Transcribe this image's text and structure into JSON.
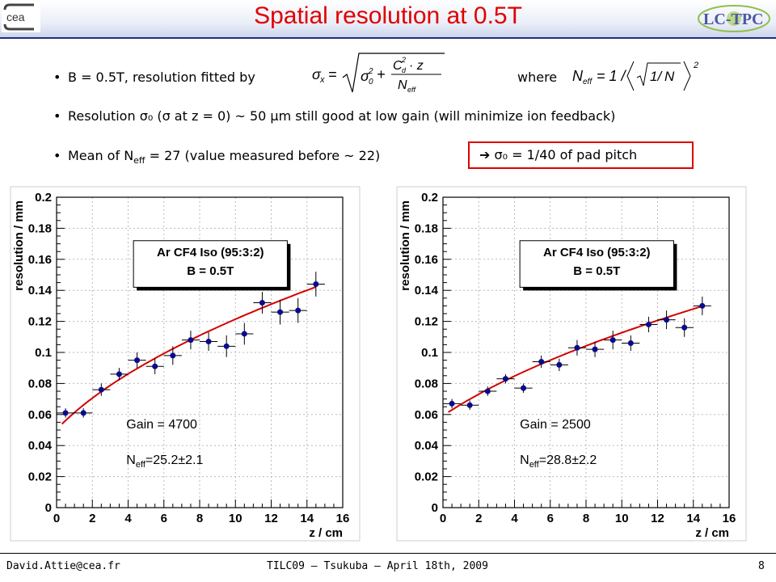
{
  "header": {
    "title": "Spatial resolution at 0.5T",
    "logo_left_text": "cea",
    "logo_right_text": "LC-TPC"
  },
  "bullets": {
    "b1_text": "B = 0.5T, resolution fitted by",
    "b1_where": "where",
    "b2_text": "Resolution σ₀ (σ at z = 0) ~ 50 μm still good at low gain (will minimize ion feedback)",
    "b3_pre": "Mean of N",
    "b3_sub": "eff",
    "b3_post": " = 27 (value measured before ~ 22)",
    "box_note": "➔ σ₀ = 1/40 of pad pitch"
  },
  "formulas": {
    "sigma_fit": "σₓ = √( σ₀² + C_d²·z / N_eff )",
    "neff_def": "N_eff = 1 / ⟨ √(1/N) ⟩²"
  },
  "footer": {
    "left": "David.Attie@cea.fr",
    "center": "TILC09 – Tsukuba – April 18th, 2009",
    "page": "8"
  },
  "colors": {
    "fit_line": "#d40000",
    "points": "#0a0a8c",
    "title": "#e00000",
    "frame_bg": "#ffffff"
  },
  "chart_data": [
    {
      "type": "scatter",
      "xlabel": "z / cm",
      "ylabel": "resolution / mm",
      "xlim": [
        0,
        16
      ],
      "ylim": [
        0,
        0.2
      ],
      "x_ticks": [
        "0",
        "2",
        "4",
        "6",
        "8",
        "10",
        "12",
        "14",
        "16"
      ],
      "y_ticks": [
        "0",
        "0.02",
        "0.04",
        "0.06",
        "0.08",
        "0.1",
        "0.12",
        "0.14",
        "0.16",
        "0.18",
        "0.2"
      ],
      "grid": true,
      "legend": {
        "line1": "Ar CF4 Iso (95:3:2)",
        "line2": "B = 0.5T",
        "position": "top-center"
      },
      "annotation_gain": "Gain = 4700",
      "annotation_neff_pre": "N",
      "annotation_neff_sub": "eff",
      "annotation_neff_post": "=25.2±2.1",
      "points": [
        {
          "x": 0.5,
          "y": 0.061,
          "xerr": 0.5,
          "yerr": 0.003
        },
        {
          "x": 1.5,
          "y": 0.061,
          "xerr": 0.5,
          "yerr": 0.003
        },
        {
          "x": 2.5,
          "y": 0.076,
          "xerr": 0.5,
          "yerr": 0.004
        },
        {
          "x": 3.5,
          "y": 0.086,
          "xerr": 0.5,
          "yerr": 0.004
        },
        {
          "x": 4.5,
          "y": 0.095,
          "xerr": 0.5,
          "yerr": 0.005
        },
        {
          "x": 5.5,
          "y": 0.091,
          "xerr": 0.5,
          "yerr": 0.005
        },
        {
          "x": 6.5,
          "y": 0.098,
          "xerr": 0.5,
          "yerr": 0.006
        },
        {
          "x": 7.5,
          "y": 0.108,
          "xerr": 0.5,
          "yerr": 0.006
        },
        {
          "x": 8.5,
          "y": 0.107,
          "xerr": 0.5,
          "yerr": 0.006
        },
        {
          "x": 9.5,
          "y": 0.104,
          "xerr": 0.5,
          "yerr": 0.007
        },
        {
          "x": 10.5,
          "y": 0.112,
          "xerr": 0.5,
          "yerr": 0.007
        },
        {
          "x": 11.5,
          "y": 0.132,
          "xerr": 0.5,
          "yerr": 0.007
        },
        {
          "x": 12.5,
          "y": 0.126,
          "xerr": 0.5,
          "yerr": 0.008
        },
        {
          "x": 13.5,
          "y": 0.127,
          "xerr": 0.5,
          "yerr": 0.008
        },
        {
          "x": 14.5,
          "y": 0.144,
          "xerr": 0.5,
          "yerr": 0.008
        }
      ],
      "fit": {
        "x": [
          0.3,
          14.5
        ],
        "sigma0": 0.0504,
        "slope": 0.00122
      }
    },
    {
      "type": "scatter",
      "xlabel": "z / cm",
      "ylabel": "resolution / mm",
      "xlim": [
        0,
        16
      ],
      "ylim": [
        0,
        0.2
      ],
      "x_ticks": [
        "0",
        "2",
        "4",
        "6",
        "8",
        "10",
        "12",
        "14",
        "16"
      ],
      "y_ticks": [
        "0",
        "0.02",
        "0.04",
        "0.06",
        "0.08",
        "0.1",
        "0.12",
        "0.14",
        "0.16",
        "0.18",
        "0.2"
      ],
      "grid": true,
      "legend": {
        "line1": "Ar CF4 Iso (95:3:2)",
        "line2": "B = 0.5T",
        "position": "top-center"
      },
      "annotation_gain": "Gain = 2500",
      "annotation_neff_pre": "N",
      "annotation_neff_sub": "eff",
      "annotation_neff_post": "=28.8±2.2",
      "points": [
        {
          "x": 0.5,
          "y": 0.067,
          "xerr": 0.5,
          "yerr": 0.003
        },
        {
          "x": 1.5,
          "y": 0.066,
          "xerr": 0.5,
          "yerr": 0.003
        },
        {
          "x": 2.5,
          "y": 0.075,
          "xerr": 0.5,
          "yerr": 0.003
        },
        {
          "x": 3.5,
          "y": 0.083,
          "xerr": 0.5,
          "yerr": 0.003
        },
        {
          "x": 4.5,
          "y": 0.077,
          "xerr": 0.5,
          "yerr": 0.003
        },
        {
          "x": 5.5,
          "y": 0.094,
          "xerr": 0.5,
          "yerr": 0.004
        },
        {
          "x": 6.5,
          "y": 0.092,
          "xerr": 0.5,
          "yerr": 0.004
        },
        {
          "x": 7.5,
          "y": 0.103,
          "xerr": 0.5,
          "yerr": 0.005
        },
        {
          "x": 8.5,
          "y": 0.102,
          "xerr": 0.5,
          "yerr": 0.005
        },
        {
          "x": 9.5,
          "y": 0.108,
          "xerr": 0.5,
          "yerr": 0.006
        },
        {
          "x": 10.5,
          "y": 0.106,
          "xerr": 0.5,
          "yerr": 0.005
        },
        {
          "x": 11.5,
          "y": 0.118,
          "xerr": 0.5,
          "yerr": 0.005
        },
        {
          "x": 12.5,
          "y": 0.121,
          "xerr": 0.5,
          "yerr": 0.006
        },
        {
          "x": 13.5,
          "y": 0.116,
          "xerr": 0.5,
          "yerr": 0.006
        },
        {
          "x": 14.5,
          "y": 0.13,
          "xerr": 0.5,
          "yerr": 0.006
        }
      ],
      "fit": {
        "x": [
          0.3,
          14.5
        ],
        "sigma0": 0.0592,
        "slope": 0.00092
      }
    }
  ]
}
